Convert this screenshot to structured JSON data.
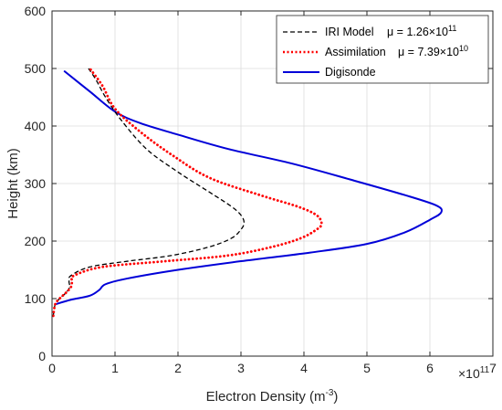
{
  "chart_data": {
    "type": "line",
    "xlabel": "Electron Density (m",
    "xlabel_sup": "-3",
    "xlabel_end": ")",
    "ylabel": "Height (km)",
    "x_multiplier": {
      "base": "×10",
      "exp": "11"
    },
    "xlim": [
      0,
      7
    ],
    "ylim": [
      0,
      600
    ],
    "xticks": [
      0,
      1,
      2,
      3,
      4,
      5,
      6,
      7
    ],
    "yticks": [
      0,
      100,
      200,
      300,
      400,
      500,
      600
    ],
    "grid": true,
    "legend_position": "top-right",
    "series": [
      {
        "name": "IRI Model",
        "legend_mu": "μ = 1.26×10",
        "legend_mu_exp": "11",
        "color": "#000000",
        "style": "dashed",
        "x": [
          0.02,
          0.05,
          0.12,
          0.22,
          0.28,
          0.27,
          0.3,
          0.6,
          1.2,
          1.9,
          2.5,
          2.85,
          3.0,
          3.05,
          3.0,
          2.85,
          2.5,
          2.0,
          1.5,
          1.1,
          0.85,
          0.7,
          0.58
        ],
        "y": [
          70,
          90,
          100,
          110,
          120,
          130,
          140,
          155,
          165,
          175,
          190,
          205,
          220,
          232,
          245,
          260,
          285,
          320,
          360,
          410,
          450,
          480,
          500
        ]
      },
      {
        "name": "Assimilation",
        "legend_mu": "μ = 7.39×10",
        "legend_mu_exp": "10",
        "color": "#ff0000",
        "style": "dotted",
        "x": [
          0.02,
          0.05,
          0.12,
          0.22,
          0.3,
          0.32,
          0.35,
          0.8,
          1.8,
          2.8,
          3.5,
          3.95,
          4.2,
          4.28,
          4.2,
          3.9,
          3.3,
          2.5,
          1.9,
          1.4,
          1.0,
          0.8,
          0.6
        ],
        "y": [
          70,
          90,
          100,
          110,
          120,
          130,
          140,
          155,
          165,
          175,
          190,
          205,
          220,
          230,
          245,
          260,
          280,
          310,
          350,
          390,
          430,
          470,
          500
        ]
      },
      {
        "name": "Digisonde",
        "color": "#0000d8",
        "style": "solid",
        "x": [
          0.05,
          0.3,
          0.6,
          0.75,
          0.85,
          1.2,
          2.0,
          3.0,
          4.1,
          5.0,
          5.6,
          6.0,
          6.18,
          6.1,
          5.6,
          4.8,
          3.8,
          2.8,
          2.0,
          1.4,
          1.0,
          0.6,
          0.2
        ],
        "y": [
          90,
          98,
          105,
          115,
          125,
          135,
          150,
          165,
          180,
          195,
          215,
          237,
          250,
          262,
          280,
          305,
          335,
          360,
          385,
          405,
          425,
          460,
          495
        ]
      }
    ]
  }
}
